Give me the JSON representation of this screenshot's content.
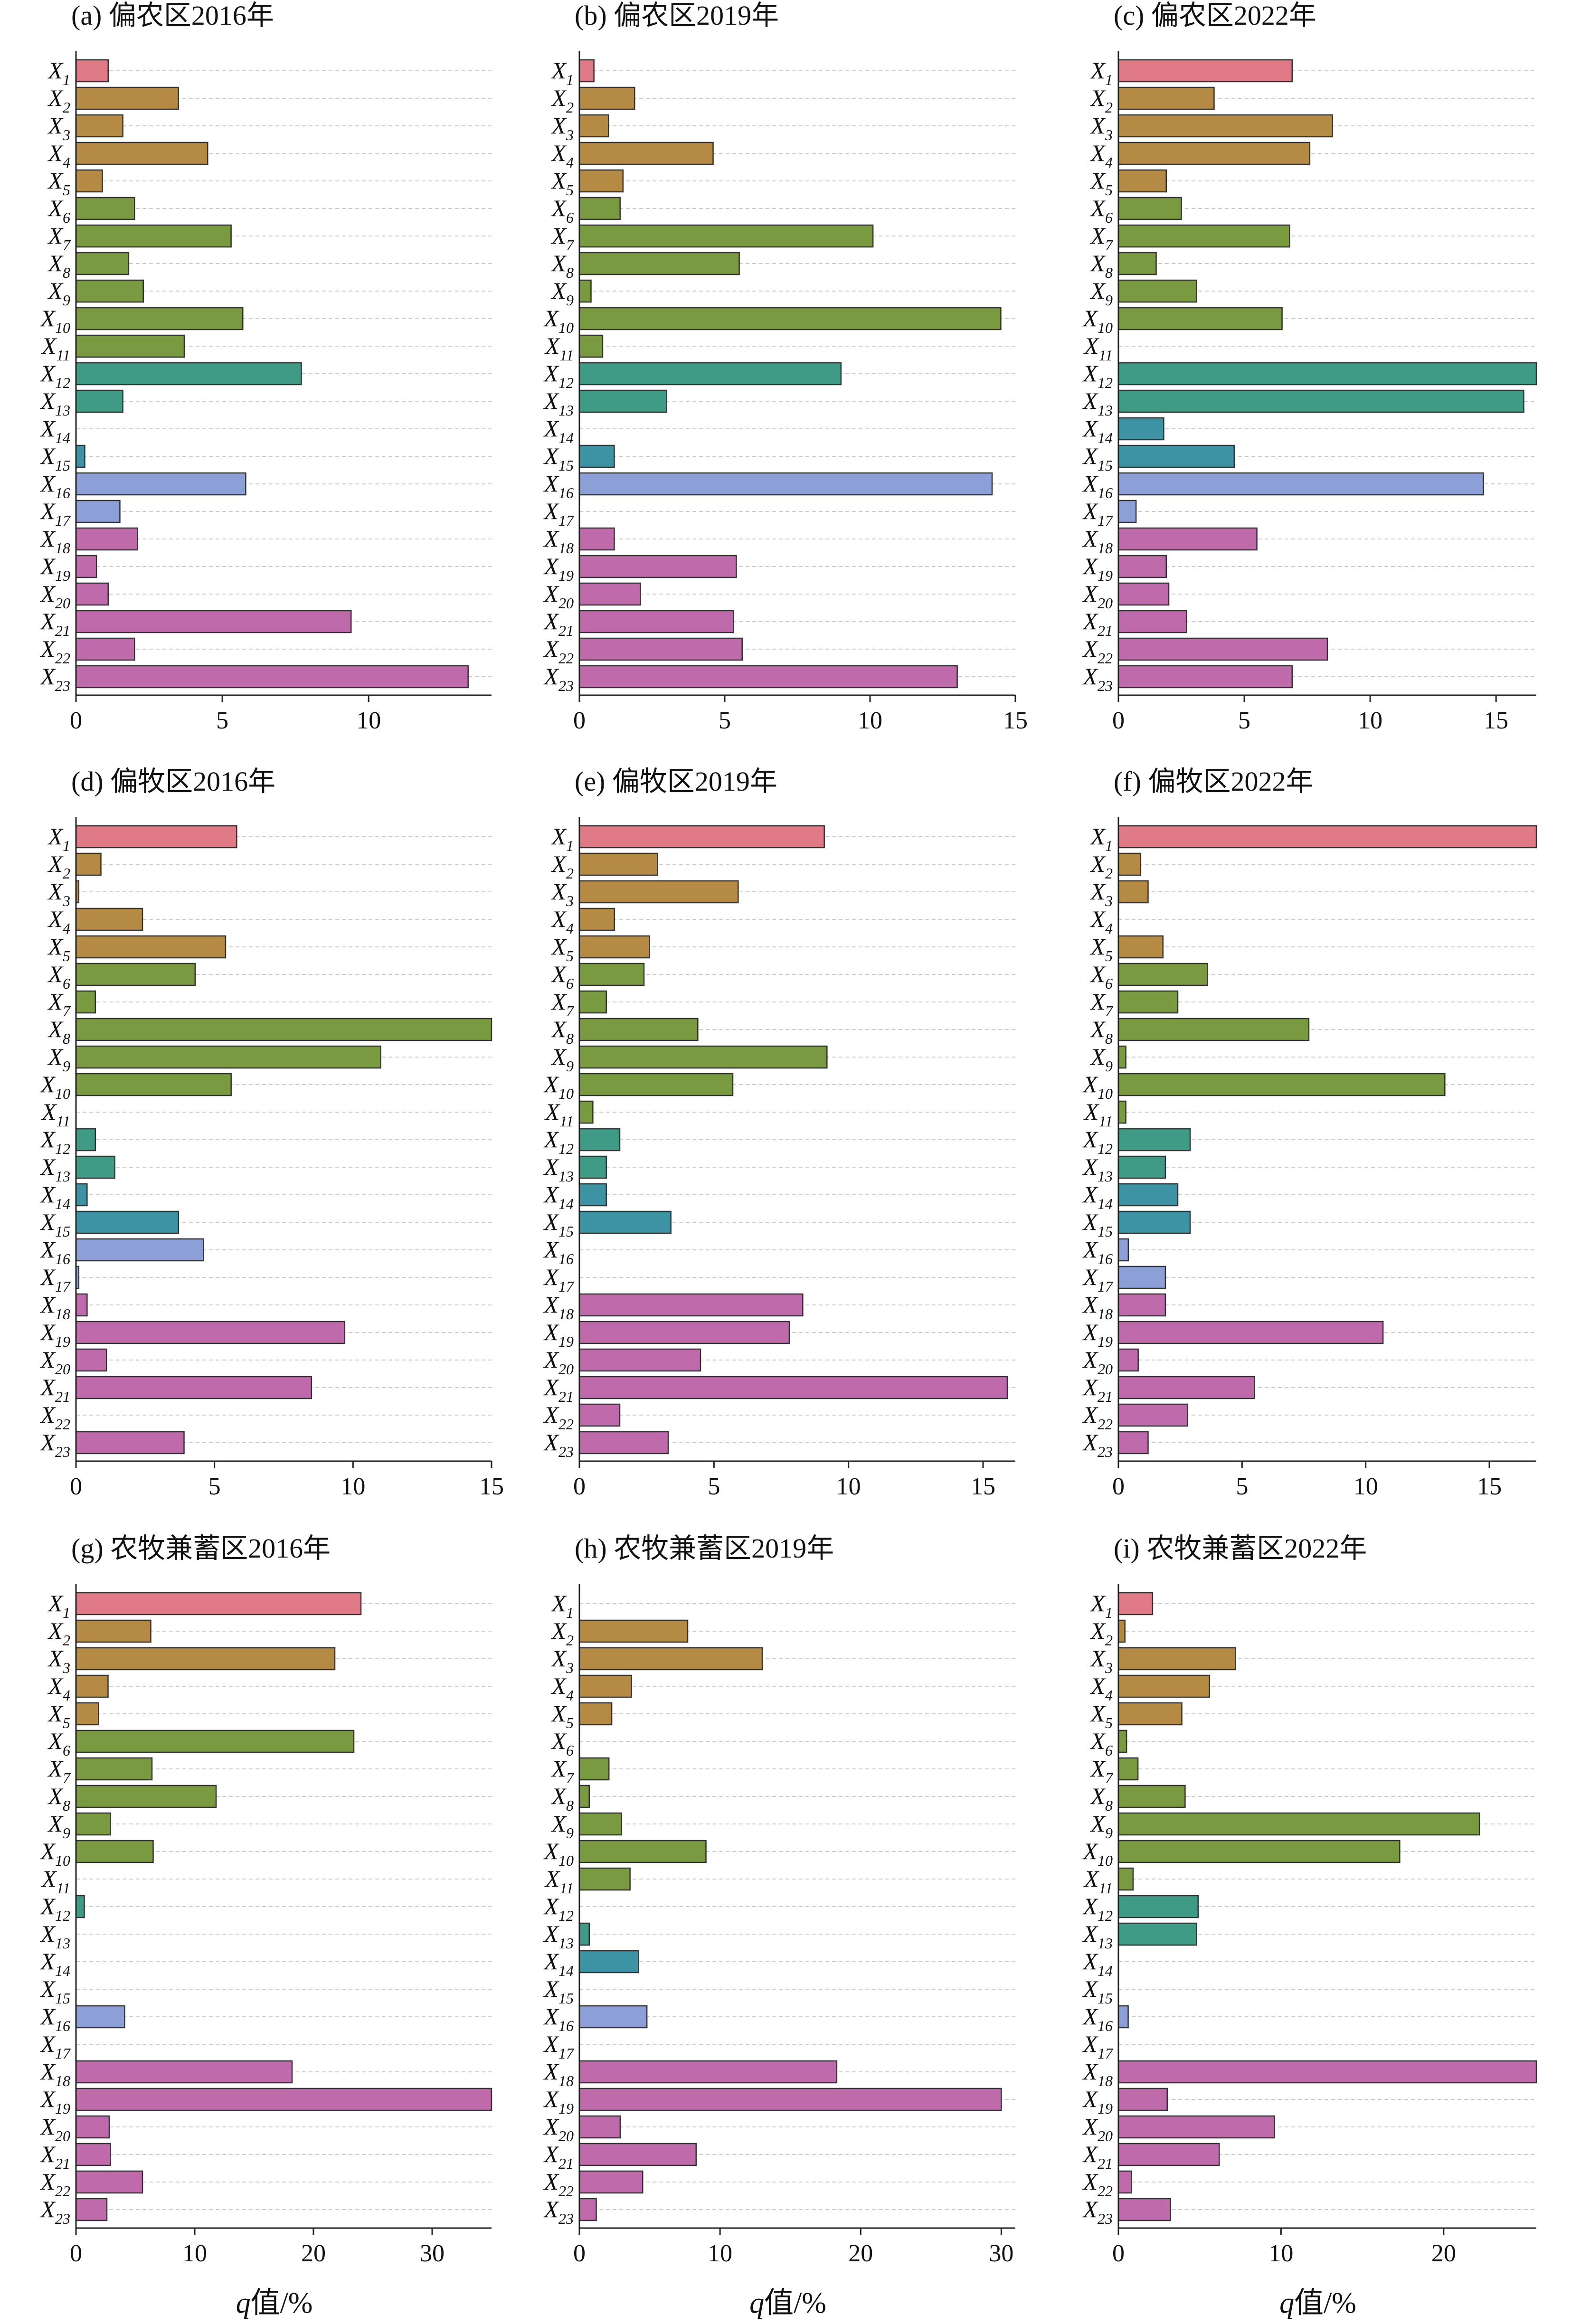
{
  "figure": {
    "xlabel_italic": "q",
    "xlabel_rest": "值/%"
  },
  "categories": [
    "X1",
    "X2",
    "X3",
    "X4",
    "X5",
    "X6",
    "X7",
    "X8",
    "X9",
    "X10",
    "X11",
    "X12",
    "X13",
    "X14",
    "X15",
    "X16",
    "X17",
    "X18",
    "X19",
    "X20",
    "X21",
    "X22",
    "X23"
  ],
  "bar_colors": {
    "pink": "#e07a86",
    "brown": "#b58a44",
    "green": "#7a9a42",
    "teal": "#3f9a86",
    "cyan": "#3d93a3",
    "blue": "#8c9fd6",
    "magenta": "#bf6aab"
  },
  "category_color_keys": [
    "pink",
    "brown",
    "brown",
    "brown",
    "brown",
    "green",
    "green",
    "green",
    "green",
    "green",
    "green",
    "teal",
    "teal",
    "cyan",
    "cyan",
    "blue",
    "blue",
    "magenta",
    "magenta",
    "magenta",
    "magenta",
    "magenta",
    "magenta"
  ],
  "chart_data": [
    {
      "type": "bar",
      "orientation": "horizontal",
      "title": "(a) 偏农区2016年",
      "xlim": [
        0,
        14.2
      ],
      "xticks": [
        0,
        5,
        10
      ],
      "values": [
        1.1,
        3.5,
        1.6,
        4.5,
        0.9,
        2.0,
        5.3,
        1.8,
        2.3,
        5.7,
        3.7,
        7.7,
        1.6,
        0.0,
        0.3,
        5.8,
        1.5,
        2.1,
        0.7,
        1.1,
        9.4,
        2.0,
        13.4
      ]
    },
    {
      "type": "bar",
      "orientation": "horizontal",
      "title": "(b) 偏农区2019年",
      "xlim": [
        0,
        15.0
      ],
      "xticks": [
        0,
        5,
        10,
        15
      ],
      "values": [
        0.5,
        1.9,
        1.0,
        4.6,
        1.5,
        1.4,
        10.1,
        5.5,
        0.4,
        14.5,
        0.8,
        9.0,
        3.0,
        0.0,
        1.2,
        14.2,
        0.0,
        1.2,
        5.4,
        2.1,
        5.3,
        5.6,
        13.0
      ]
    },
    {
      "type": "bar",
      "orientation": "horizontal",
      "title": "(c) 偏农区2022年",
      "xlim": [
        0,
        16.6
      ],
      "xticks": [
        0,
        5,
        10,
        15
      ],
      "values": [
        6.9,
        3.8,
        8.5,
        7.6,
        1.9,
        2.5,
        6.8,
        1.5,
        3.1,
        6.5,
        0.0,
        16.6,
        16.1,
        1.8,
        4.6,
        14.5,
        0.7,
        5.5,
        1.9,
        2.0,
        2.7,
        8.3,
        6.9
      ]
    },
    {
      "type": "bar",
      "orientation": "horizontal",
      "title": "(d) 偏牧区2016年",
      "xlim": [
        0,
        15.0
      ],
      "xticks": [
        0,
        5,
        10,
        15
      ],
      "values": [
        5.8,
        0.9,
        0.1,
        2.4,
        5.4,
        4.3,
        0.7,
        15.0,
        11.0,
        5.6,
        0.0,
        0.7,
        1.4,
        0.4,
        3.7,
        4.6,
        0.1,
        0.4,
        9.7,
        1.1,
        8.5,
        0.0,
        3.9
      ]
    },
    {
      "type": "bar",
      "orientation": "horizontal",
      "title": "(e) 偏牧区2019年",
      "xlim": [
        0,
        16.2
      ],
      "xticks": [
        0,
        5,
        10,
        15
      ],
      "values": [
        9.1,
        2.9,
        5.9,
        1.3,
        2.6,
        2.4,
        1.0,
        4.4,
        9.2,
        5.7,
        0.5,
        1.5,
        1.0,
        1.0,
        3.4,
        0.0,
        0.0,
        8.3,
        7.8,
        4.5,
        15.9,
        1.5,
        3.3
      ]
    },
    {
      "type": "bar",
      "orientation": "horizontal",
      "title": "(f) 偏牧区2022年",
      "xlim": [
        0,
        16.9
      ],
      "xticks": [
        0,
        5,
        10,
        15
      ],
      "values": [
        16.9,
        0.9,
        1.2,
        0.0,
        1.8,
        3.6,
        2.4,
        7.7,
        0.3,
        13.2,
        0.3,
        2.9,
        1.9,
        2.4,
        2.9,
        0.4,
        1.9,
        1.9,
        10.7,
        0.8,
        5.5,
        2.8,
        1.2
      ]
    },
    {
      "type": "bar",
      "orientation": "horizontal",
      "title": "(g) 农牧兼蓄区2016年",
      "xlim": [
        0,
        35.0
      ],
      "xticks": [
        0,
        10,
        20,
        30
      ],
      "values": [
        24.0,
        6.3,
        21.8,
        2.7,
        1.9,
        23.4,
        6.4,
        11.8,
        2.9,
        6.5,
        0.0,
        0.7,
        0.0,
        0.0,
        0.0,
        4.1,
        0.0,
        18.2,
        35.0,
        2.8,
        2.9,
        5.6,
        2.6
      ]
    },
    {
      "type": "bar",
      "orientation": "horizontal",
      "title": "(h) 农牧兼蓄区2019年",
      "xlim": [
        0,
        31.0
      ],
      "xticks": [
        0,
        10,
        20,
        30
      ],
      "values": [
        0.0,
        7.7,
        13.0,
        3.7,
        2.3,
        0.0,
        2.1,
        0.7,
        3.0,
        9.0,
        3.6,
        0.0,
        0.7,
        4.2,
        0.0,
        4.8,
        0.0,
        18.3,
        30.0,
        2.9,
        8.3,
        4.5,
        1.2
      ]
    },
    {
      "type": "bar",
      "orientation": "horizontal",
      "title": "(i) 农牧兼蓄区2022年",
      "xlim": [
        0,
        25.7
      ],
      "xticks": [
        0,
        10,
        20
      ],
      "values": [
        2.1,
        0.4,
        7.2,
        5.6,
        3.9,
        0.5,
        1.2,
        4.1,
        22.2,
        17.3,
        0.9,
        4.9,
        4.8,
        0.0,
        0.0,
        0.6,
        0.0,
        25.7,
        3.0,
        9.6,
        6.2,
        0.8,
        3.2
      ]
    }
  ]
}
